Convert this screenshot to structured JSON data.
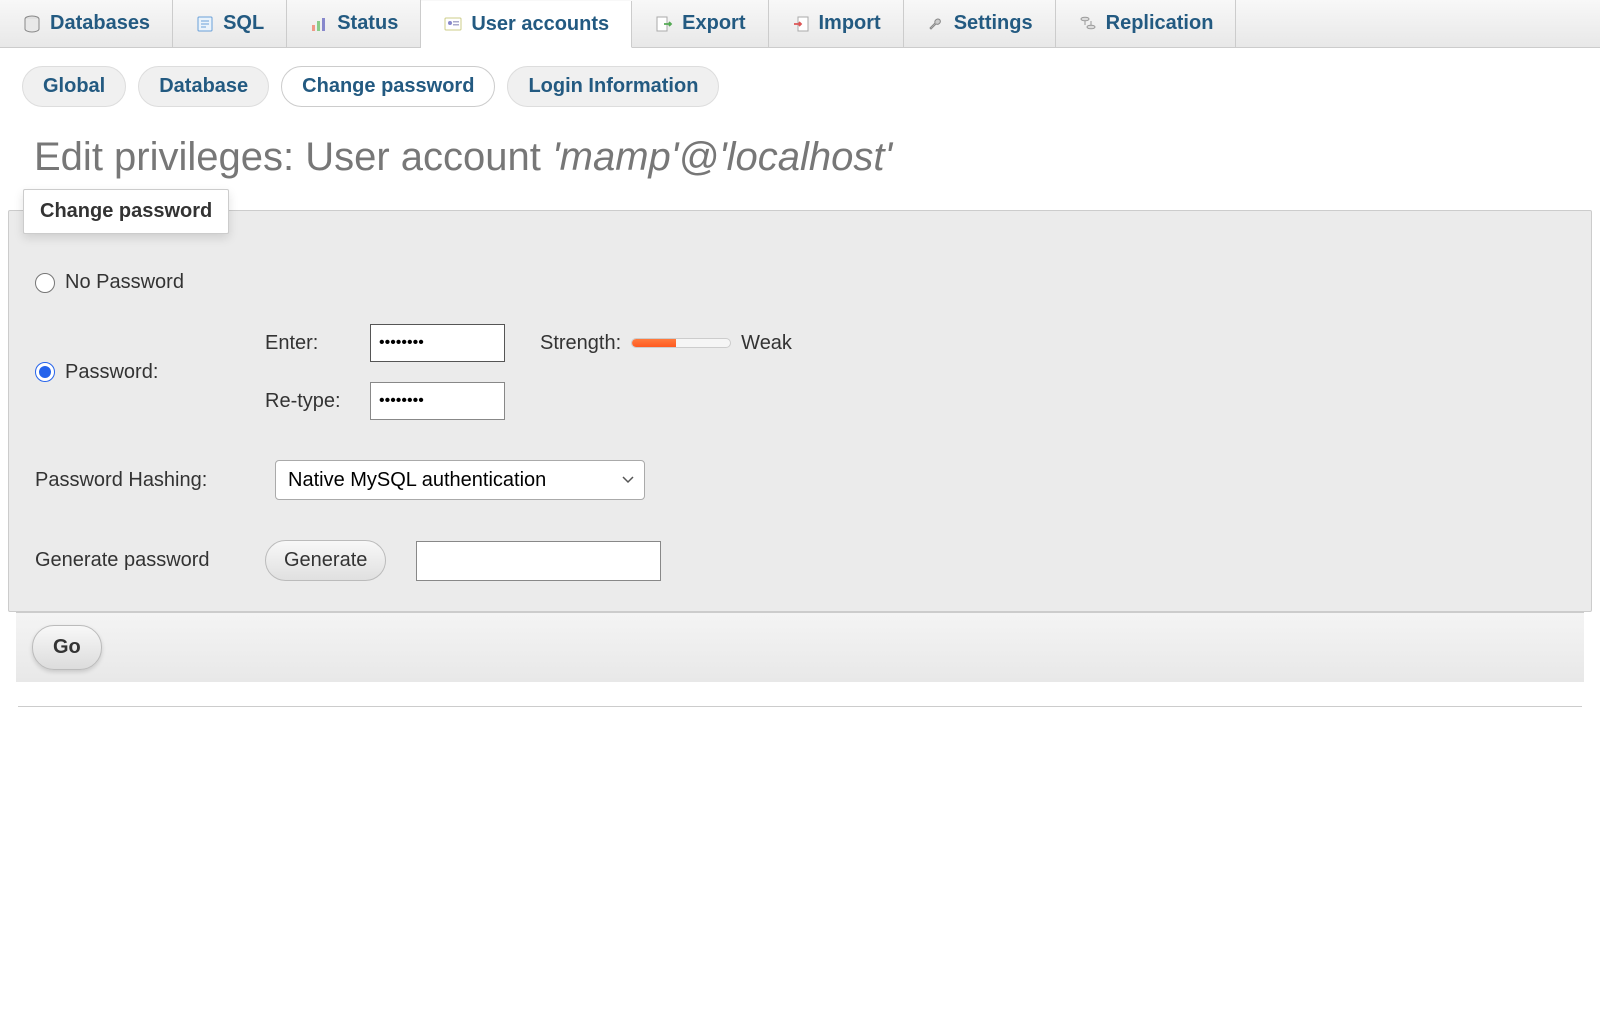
{
  "topnav": {
    "tabs": [
      {
        "label": "Databases",
        "icon": "database"
      },
      {
        "label": "SQL",
        "icon": "sql"
      },
      {
        "label": "Status",
        "icon": "status"
      },
      {
        "label": "User accounts",
        "icon": "users",
        "active": true
      },
      {
        "label": "Export",
        "icon": "export"
      },
      {
        "label": "Import",
        "icon": "import"
      },
      {
        "label": "Settings",
        "icon": "settings"
      },
      {
        "label": "Replication",
        "icon": "replication"
      }
    ]
  },
  "subnav": {
    "items": [
      {
        "label": "Global"
      },
      {
        "label": "Database"
      },
      {
        "label": "Change password",
        "active": true
      },
      {
        "label": "Login Information"
      }
    ]
  },
  "heading": {
    "prefix": "Edit privileges: User account ",
    "user": "'mamp'@'localhost'"
  },
  "panel": {
    "legend": "Change password",
    "no_password_label": "No Password",
    "password_label": "Password:",
    "enter_label": "Enter:",
    "retype_label": "Re-type:",
    "enter_value": "••••••••",
    "retype_value": "••••••••",
    "strength_label": "Strength:",
    "strength_text": "Weak",
    "strength_percent": 45,
    "strength_fill_color": "#ff7a3d",
    "hashing_label": "Password Hashing:",
    "hashing_value": "Native MySQL authentication",
    "generate_label": "Generate password",
    "generate_button": "Generate",
    "generate_output": ""
  },
  "footer": {
    "go_label": "Go"
  },
  "colors": {
    "link": "#235a81",
    "panel_bg": "#ebebeb",
    "border": "#cccccc"
  }
}
